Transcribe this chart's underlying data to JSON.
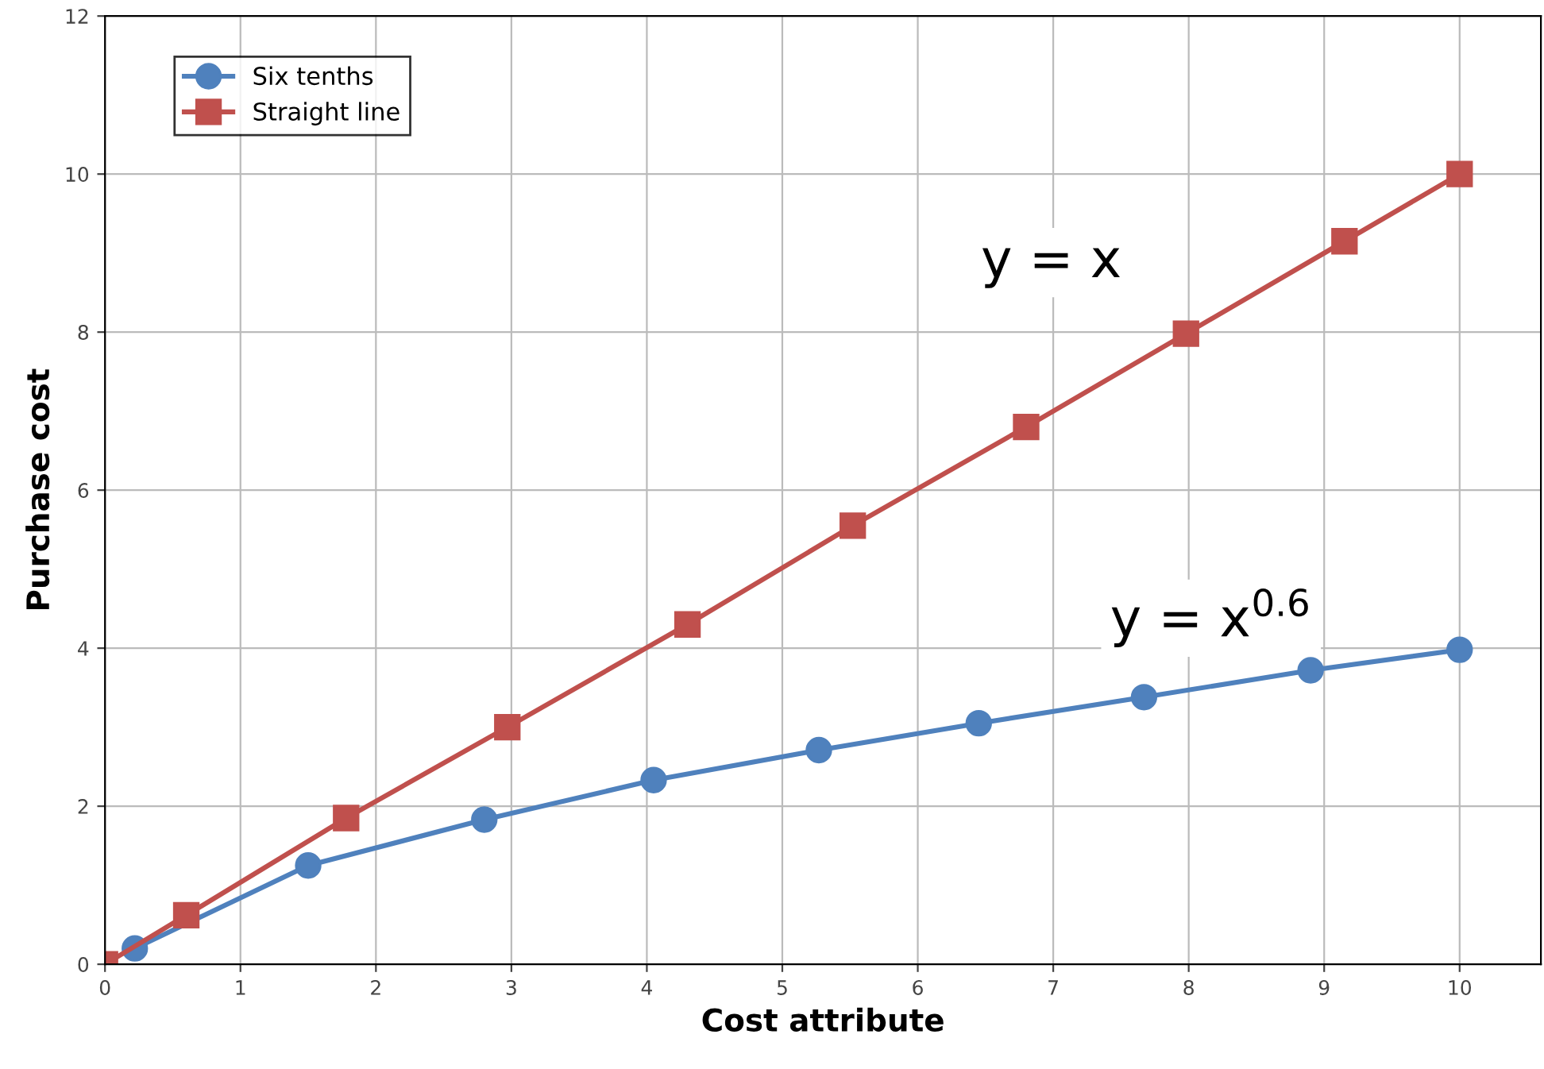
{
  "chart_data": {
    "type": "line",
    "xlabel": "Cost attribute",
    "ylabel": "Purchase cost",
    "series": [
      {
        "name": "Six tenths",
        "color": "#4f81bd",
        "marker": "circle",
        "x": [
          0.22,
          1.5,
          2.8,
          4.05,
          5.27,
          6.45,
          7.67,
          8.9,
          10
        ],
        "values": [
          0.2,
          1.25,
          1.83,
          2.33,
          2.71,
          3.05,
          3.38,
          3.72,
          3.98
        ]
      },
      {
        "name": "Straight line",
        "color": "#c0504d",
        "marker": "square",
        "x": [
          0,
          0.6,
          1.78,
          2.97,
          4.3,
          5.52,
          6.8,
          7.98,
          9.15,
          10
        ],
        "values": [
          0,
          0.62,
          1.85,
          3.0,
          4.3,
          5.55,
          6.8,
          7.98,
          9.15,
          10
        ]
      }
    ],
    "annotations": [
      "y = x",
      "y = x$^{0.6}$"
    ],
    "xlim": [
      0,
      10.6
    ],
    "xticks": [
      0,
      1,
      2,
      3,
      4,
      5,
      6,
      7,
      8,
      9,
      10
    ],
    "ylim": [
      0,
      12
    ],
    "yticks": [
      0,
      2,
      4,
      6,
      8,
      10,
      12
    ],
    "grid": true,
    "legend": "top left",
    "line_style": "solid"
  }
}
